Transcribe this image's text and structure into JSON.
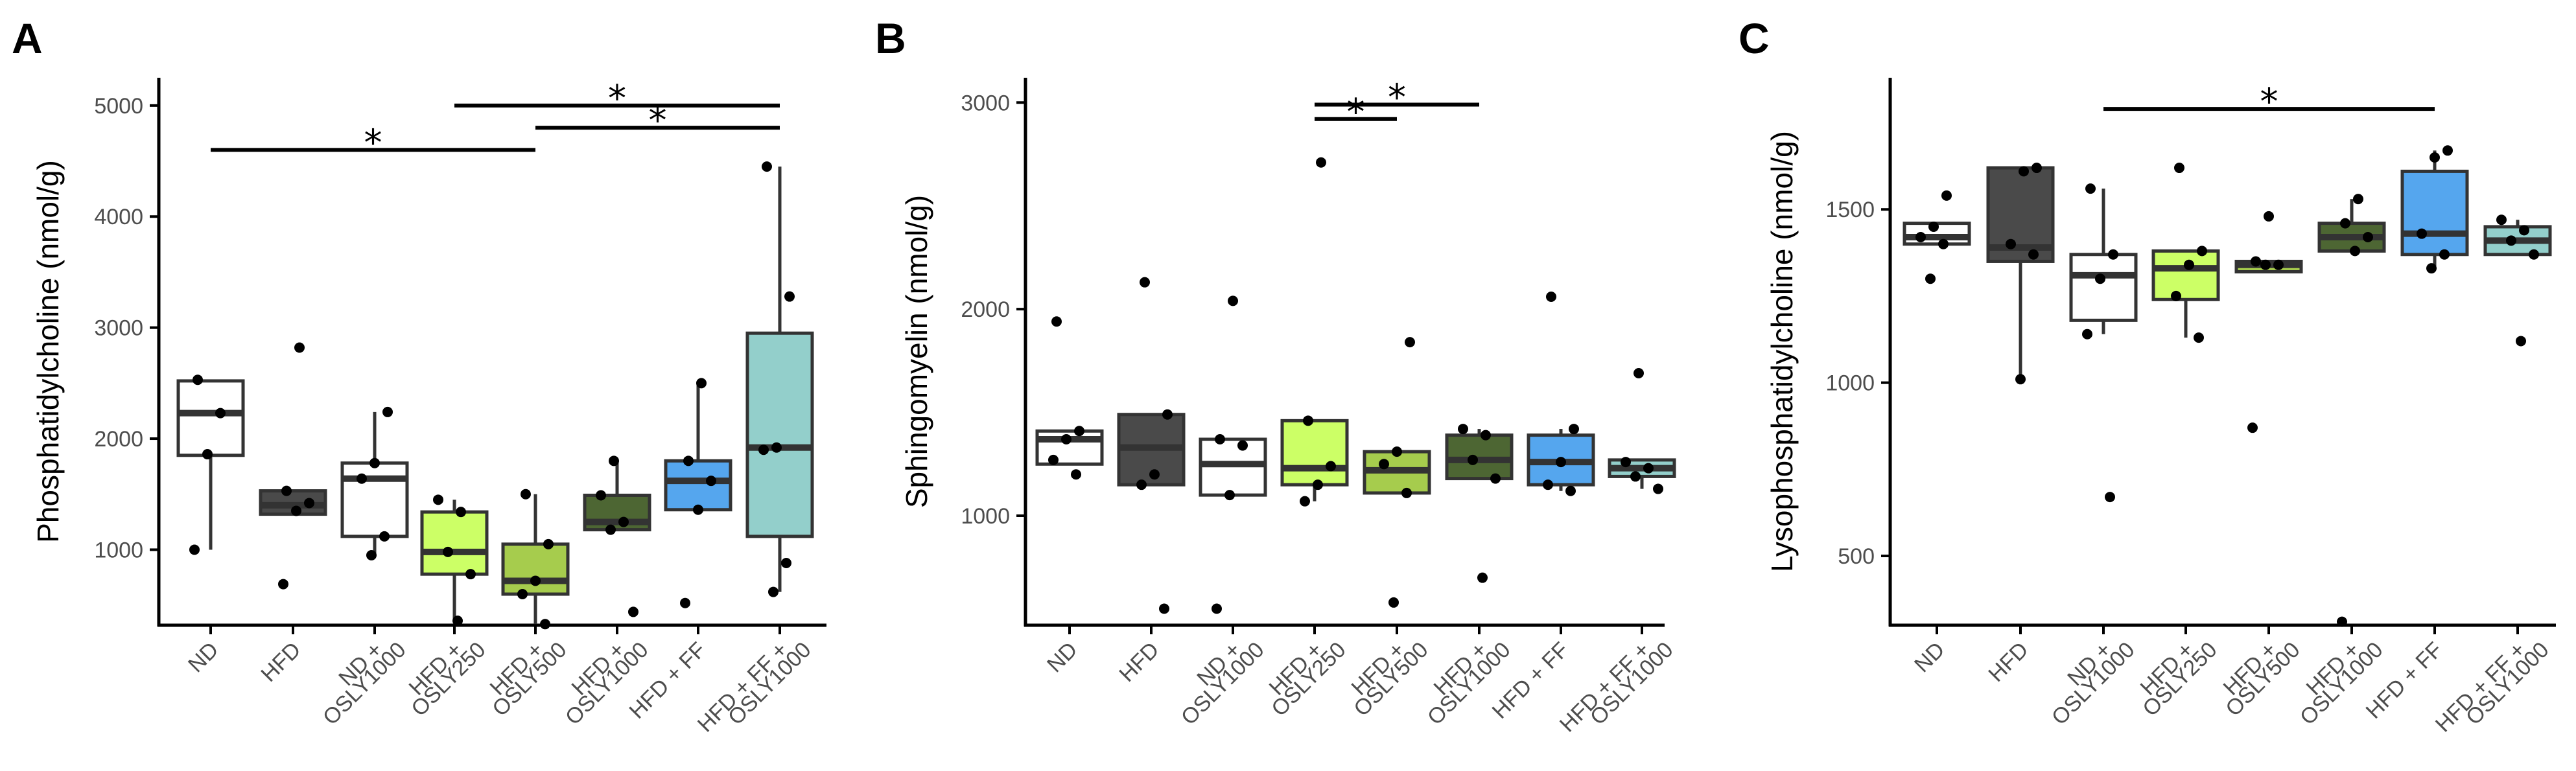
{
  "panels": [
    {
      "label": "A",
      "ylabel": "Phosphatidylcholine (nmol/g)",
      "ylim": [
        320,
        5250
      ],
      "yticks": [
        1000,
        2000,
        3000,
        4000,
        5000
      ],
      "ytick_labels": [
        "1000",
        "2000",
        "3000",
        "4000",
        "5000"
      ],
      "groups": [
        {
          "label": [
            "ND"
          ],
          "q1": 1850,
          "median": 2230,
          "q3": 2520,
          "wlow": 1000,
          "whigh": 2530,
          "points": [
            1000,
            1860,
            2230,
            2530
          ]
        },
        {
          "label": [
            "HFD"
          ],
          "q1": 1320,
          "median": 1400,
          "q3": 1530,
          "wlow": 1320,
          "whigh": 1530,
          "points": [
            690,
            1350,
            1420,
            1530,
            2820
          ]
        },
        {
          "label": [
            "ND +",
            "OSLY1000"
          ],
          "q1": 1120,
          "median": 1640,
          "q3": 1780,
          "wlow": 950,
          "whigh": 2240,
          "points": [
            950,
            1120,
            1640,
            1780,
            2240
          ]
        },
        {
          "label": [
            "HFD +",
            "OSLY250"
          ],
          "q1": 780,
          "median": 980,
          "q3": 1340,
          "wlow": 360,
          "whigh": 1450,
          "points": [
            360,
            780,
            980,
            1340,
            1450
          ]
        },
        {
          "label": [
            "HFD +",
            "OSLY500"
          ],
          "q1": 600,
          "median": 720,
          "q3": 1050,
          "wlow": 330,
          "whigh": 1500,
          "points": [
            330,
            600,
            720,
            1050,
            1500
          ]
        },
        {
          "label": [
            "HFD +",
            "OSLY1000"
          ],
          "q1": 1180,
          "median": 1250,
          "q3": 1490,
          "wlow": 1180,
          "whigh": 1800,
          "points": [
            440,
            1180,
            1250,
            1490,
            1800
          ]
        },
        {
          "label": [
            "HFD + FF"
          ],
          "q1": 1360,
          "median": 1620,
          "q3": 1800,
          "wlow": 1360,
          "whigh": 2500,
          "points": [
            520,
            1360,
            1620,
            1800,
            2500
          ]
        },
        {
          "label": [
            "HFD + FF +",
            "OSLY1000"
          ],
          "q1": 1120,
          "median": 1920,
          "q3": 2950,
          "wlow": 620,
          "whigh": 4450,
          "points": [
            620,
            880,
            1900,
            1920,
            3280,
            4450
          ]
        }
      ],
      "sig": [
        {
          "from": 0,
          "to": 4,
          "y": 4600,
          "label": "*"
        },
        {
          "from": 3,
          "to": 7,
          "y": 5000,
          "label": "*"
        },
        {
          "from": 4,
          "to": 7,
          "y": 4800,
          "label": "*"
        }
      ]
    },
    {
      "label": "B",
      "ylabel": "Sphingomyelin (nmol/g)",
      "ylim": [
        470,
        3120
      ],
      "yticks": [
        1000,
        2000,
        3000
      ],
      "ytick_labels": [
        "1000",
        "2000",
        "3000"
      ],
      "groups": [
        {
          "label": [
            "ND"
          ],
          "q1": 1250,
          "median": 1370,
          "q3": 1410,
          "wlow": 1250,
          "whigh": 1410,
          "points": [
            1200,
            1270,
            1370,
            1410,
            1940
          ]
        },
        {
          "label": [
            "HFD"
          ],
          "q1": 1150,
          "median": 1330,
          "q3": 1490,
          "wlow": 1150,
          "whigh": 1490,
          "points": [
            550,
            1150,
            1200,
            1490,
            2130
          ]
        },
        {
          "label": [
            "ND +",
            "OSLY1000"
          ],
          "q1": 1100,
          "median": 1250,
          "q3": 1370,
          "wlow": 1100,
          "whigh": 1370,
          "points": [
            550,
            1100,
            1340,
            1370,
            2040
          ]
        },
        {
          "label": [
            "HFD +",
            "OSLY250"
          ],
          "q1": 1150,
          "median": 1230,
          "q3": 1460,
          "wlow": 1070,
          "whigh": 1460,
          "points": [
            1070,
            1150,
            1240,
            1460,
            2710
          ]
        },
        {
          "label": [
            "HFD +",
            "OSLY500"
          ],
          "q1": 1110,
          "median": 1220,
          "q3": 1310,
          "wlow": 1110,
          "whigh": 1310,
          "points": [
            580,
            1110,
            1250,
            1310,
            1840
          ]
        },
        {
          "label": [
            "HFD +",
            "OSLY1000"
          ],
          "q1": 1180,
          "median": 1270,
          "q3": 1390,
          "wlow": 1180,
          "whigh": 1420,
          "points": [
            700,
            1180,
            1270,
            1390,
            1420
          ]
        },
        {
          "label": [
            "HFD + FF"
          ],
          "q1": 1150,
          "median": 1260,
          "q3": 1390,
          "wlow": 1120,
          "whigh": 1420,
          "points": [
            1120,
            1150,
            1260,
            1420,
            2060
          ]
        },
        {
          "label": [
            "HFD + FF +",
            "OSLY1000"
          ],
          "q1": 1190,
          "median": 1230,
          "q3": 1270,
          "wlow": 1130,
          "whigh": 1270,
          "points": [
            1130,
            1190,
            1230,
            1260,
            1690
          ]
        }
      ],
      "sig": [
        {
          "from": 3,
          "to": 5,
          "y": 2990,
          "label": "*"
        },
        {
          "from": 3,
          "to": 4,
          "y": 2920,
          "label": "*"
        }
      ]
    },
    {
      "label": "C",
      "ylabel": "Lysophosphatidylcholine (nmol/g)",
      "ylim": [
        300,
        1880
      ],
      "yticks": [
        500,
        1000,
        1500
      ],
      "ytick_labels": [
        "500",
        "1000",
        "1500"
      ],
      "groups": [
        {
          "label": [
            "ND"
          ],
          "q1": 1400,
          "median": 1420,
          "q3": 1460,
          "wlow": 1400,
          "whigh": 1460,
          "points": [
            1300,
            1400,
            1420,
            1450,
            1540
          ]
        },
        {
          "label": [
            "HFD"
          ],
          "q1": 1350,
          "median": 1390,
          "q3": 1620,
          "wlow": 1000,
          "whigh": 1620,
          "points": [
            1010,
            1370,
            1400,
            1610,
            1620
          ]
        },
        {
          "label": [
            "ND +",
            "OSLY1000"
          ],
          "q1": 1180,
          "median": 1310,
          "q3": 1370,
          "wlow": 1140,
          "whigh": 1560,
          "points": [
            670,
            1140,
            1300,
            1370,
            1560
          ]
        },
        {
          "label": [
            "HFD +",
            "OSLY250"
          ],
          "q1": 1240,
          "median": 1330,
          "q3": 1380,
          "wlow": 1130,
          "whigh": 1380,
          "points": [
            1130,
            1250,
            1340,
            1380,
            1620
          ]
        },
        {
          "label": [
            "HFD +",
            "OSLY500"
          ],
          "q1": 1320,
          "median": 1340,
          "q3": 1350,
          "wlow": 1320,
          "whigh": 1350,
          "points": [
            870,
            1340,
            1340,
            1350,
            1480
          ]
        },
        {
          "label": [
            "HFD +",
            "OSLY1000"
          ],
          "q1": 1380,
          "median": 1420,
          "q3": 1460,
          "wlow": 1380,
          "whigh": 1530,
          "points": [
            310,
            1380,
            1420,
            1460,
            1530
          ]
        },
        {
          "label": [
            "HFD + FF"
          ],
          "q1": 1370,
          "median": 1430,
          "q3": 1610,
          "wlow": 1330,
          "whigh": 1670,
          "points": [
            1330,
            1370,
            1430,
            1650,
            1670
          ]
        },
        {
          "label": [
            "HFD + FF +",
            "OSLY1000"
          ],
          "q1": 1370,
          "median": 1410,
          "q3": 1450,
          "wlow": 1370,
          "whigh": 1470,
          "points": [
            1120,
            1370,
            1410,
            1440,
            1470
          ]
        }
      ],
      "sig": [
        {
          "from": 2,
          "to": 6,
          "y": 1790,
          "label": "*"
        }
      ]
    }
  ],
  "colors": {
    "fills": [
      "#ffffff",
      "#4a4a4a",
      "#ffffff",
      "#ccff66",
      "#a6cc4d",
      "#4d6633",
      "#55a6ee",
      "#93cfcb"
    ],
    "outline": "#333333",
    "point": "#000000"
  }
}
